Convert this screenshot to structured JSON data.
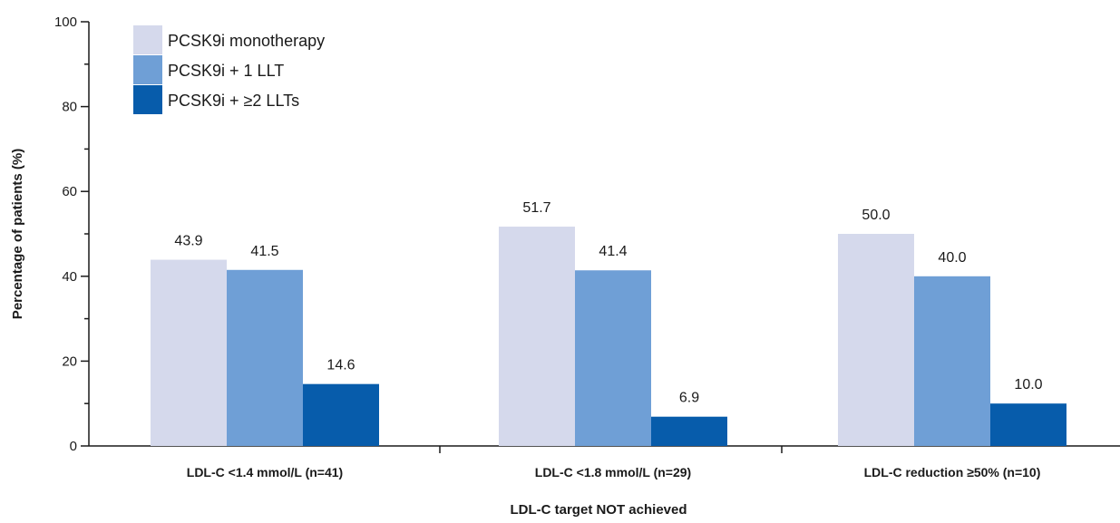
{
  "chart_data": {
    "type": "bar",
    "title": "",
    "xlabel": "LDL-C target NOT achieved",
    "ylabel": "Percentage of patients (%)",
    "ylim": [
      0,
      100
    ],
    "yticks": [
      0,
      20,
      40,
      60,
      80,
      100
    ],
    "grid": false,
    "legend_position": "top-left",
    "categories": [
      "LDL-C <1.4 mmol/L (n=41)",
      "LDL-C <1.8 mmol/L (n=29)",
      "LDL-C reduction ≥50% (n=10)"
    ],
    "series": [
      {
        "name": "PCSK9i monotherapy",
        "color": "#d5d9ec",
        "values": [
          43.9,
          51.7,
          50.0
        ],
        "labels": [
          "43.9",
          "51.7",
          "50.0"
        ]
      },
      {
        "name": "PCSK9i + 1 LLT",
        "color": "#6f9fd6",
        "values": [
          41.5,
          41.4,
          40.0
        ],
        "labels": [
          "41.5",
          "41.4",
          "40.0"
        ]
      },
      {
        "name": "PCSK9i + ≥2 LLTs",
        "color": "#075cab",
        "values": [
          14.6,
          6.9,
          10.0
        ],
        "labels": [
          "14.6",
          "6.9",
          "10.0"
        ]
      }
    ]
  }
}
